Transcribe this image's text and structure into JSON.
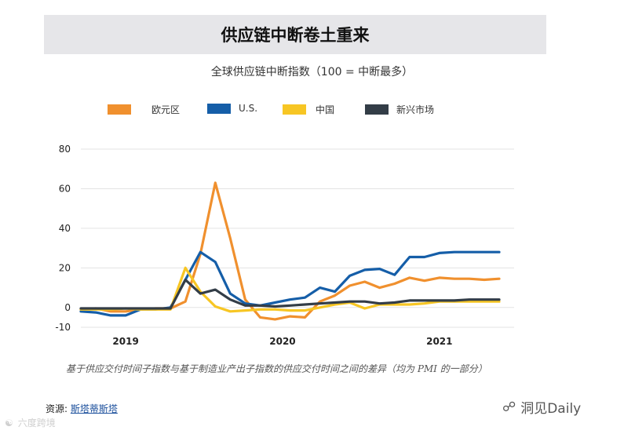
{
  "header": {
    "title": "供应链中断卷土重来",
    "subtitle": "全球供应链中断指数（100 = 中断最多）"
  },
  "footer": {
    "caption": "基于供应交付时间子指数与基于制造业产出子指数的供应交付时间之间的差异（均为 PMI 的一部分）",
    "source_label": "资源:",
    "source_link": "斯塔蒂斯塔",
    "watermark_left": "六度跨境",
    "watermark_right": "洞见Daily"
  },
  "colors": {
    "eurozone": "#f0902e",
    "us": "#155ea8",
    "china": "#f7c624",
    "emerging": "#333d47"
  },
  "chart_data": {
    "type": "line",
    "title": "全球供应链中断指数（100 = 中断最多）",
    "xlabel": "",
    "ylabel": "",
    "ylim": [
      -10,
      80
    ],
    "yticks": [
      80,
      60,
      40,
      20,
      0,
      -10
    ],
    "xlim": [
      0,
      29
    ],
    "xticks": [
      {
        "label": "2019",
        "x": 3
      },
      {
        "label": "2020",
        "x": 13.5
      },
      {
        "label": "2021",
        "x": 24
      }
    ],
    "grid": true,
    "legend_position": "top",
    "series": [
      {
        "name": "欧元区",
        "color_key": "eurozone",
        "x": [
          0,
          1,
          2,
          3,
          4,
          5,
          6,
          7,
          8,
          9,
          10,
          11,
          12,
          13,
          14,
          15,
          16,
          17,
          18,
          19,
          20,
          21,
          22,
          23,
          24,
          25,
          26,
          27,
          28
        ],
        "values": [
          -1,
          -0.5,
          -2,
          -2,
          -1,
          -0.5,
          -0.5,
          3,
          27,
          63,
          35,
          4,
          -5,
          -6,
          -4.5,
          -5,
          3,
          6,
          11,
          13,
          10,
          12,
          15,
          13.5,
          15,
          14.5,
          14.5,
          14,
          14.5
        ]
      },
      {
        "name": "U.S.",
        "color_key": "us",
        "x": [
          0,
          1,
          2,
          3,
          4,
          5,
          6,
          7,
          8,
          9,
          10,
          11,
          12,
          13,
          14,
          15,
          16,
          17,
          18,
          19,
          20,
          21,
          22,
          23,
          24,
          25,
          26,
          27,
          28
        ],
        "values": [
          -2,
          -2.5,
          -4,
          -4,
          -1,
          -1,
          0,
          14,
          28,
          23,
          7,
          2,
          1,
          2.5,
          4,
          5,
          10,
          8,
          16,
          19,
          19.5,
          16.5,
          25.5,
          25.5,
          27.5,
          28,
          28,
          28,
          28
        ]
      },
      {
        "name": "中国",
        "color_key": "china",
        "x": [
          0,
          1,
          2,
          3,
          4,
          5,
          6,
          7,
          8,
          9,
          10,
          11,
          12,
          13,
          14,
          15,
          16,
          17,
          18,
          19,
          20,
          21,
          22,
          23,
          24,
          25,
          26,
          27,
          28
        ],
        "values": [
          -1,
          -1,
          -1,
          -0.5,
          -1,
          -1,
          -1,
          20,
          8,
          0.5,
          -2,
          -1.5,
          -1,
          -1,
          -1.5,
          -1.5,
          0,
          1.5,
          2.5,
          -0.5,
          1.5,
          1.5,
          1.5,
          2,
          3,
          3,
          3,
          3,
          3
        ]
      },
      {
        "name": "新兴市场",
        "color_key": "emerging",
        "x": [
          0,
          1,
          2,
          3,
          4,
          5,
          6,
          7,
          8,
          9,
          10,
          11,
          12,
          13,
          14,
          15,
          16,
          17,
          18,
          19,
          20,
          21,
          22,
          23,
          24,
          25,
          26,
          27,
          28
        ],
        "values": [
          -0.5,
          -0.5,
          -0.5,
          -0.5,
          -0.5,
          -0.5,
          -0.5,
          14,
          7,
          9,
          4,
          1,
          1,
          0.5,
          1,
          1.5,
          2,
          2.5,
          3,
          3,
          2,
          2.5,
          3.5,
          3.5,
          3.5,
          3.5,
          4,
          4,
          4
        ]
      }
    ]
  }
}
